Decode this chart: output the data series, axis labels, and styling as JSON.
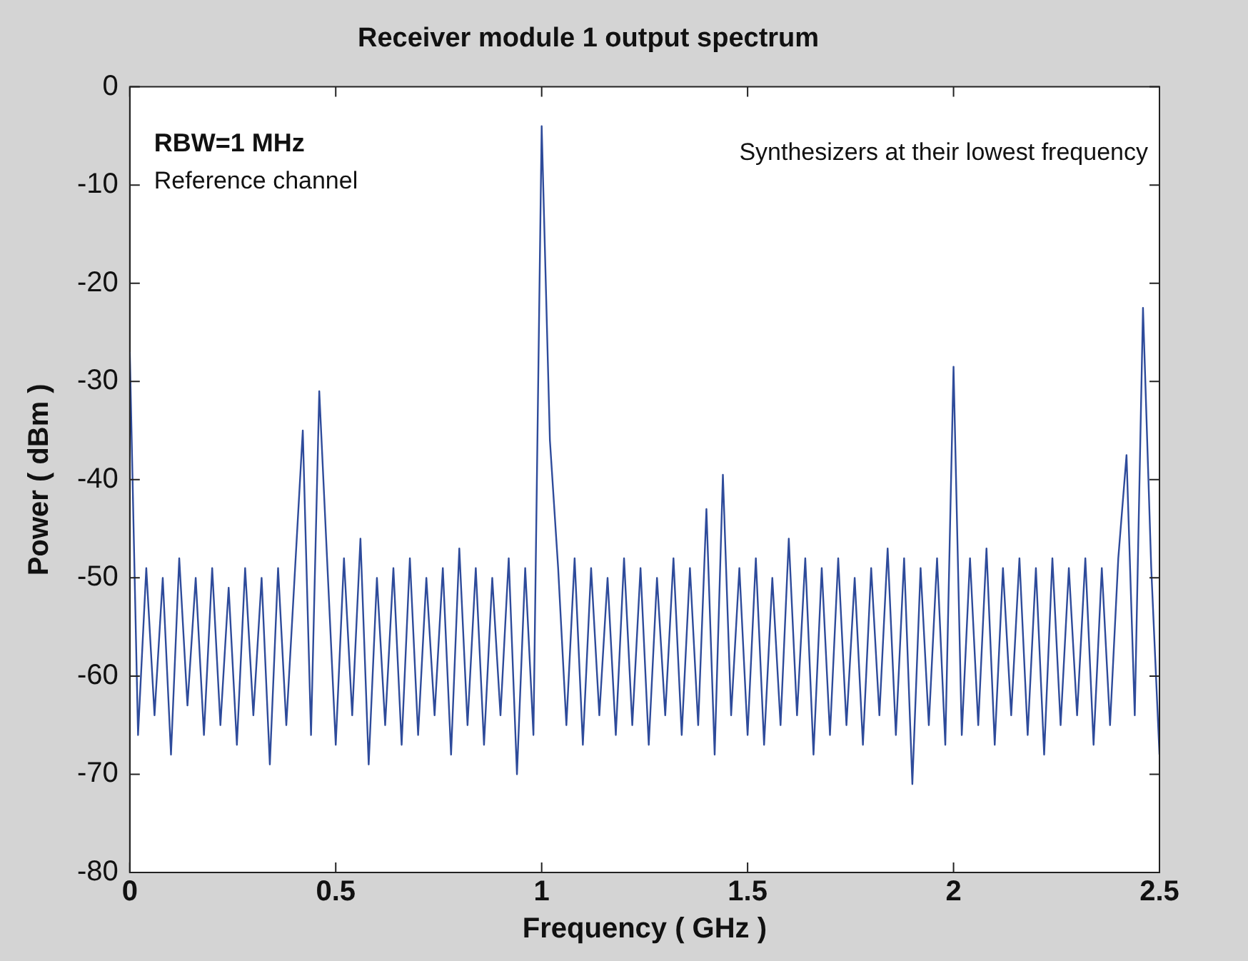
{
  "chart_data": {
    "type": "line",
    "title": "Receiver module 1 output spectrum",
    "xlabel": "Frequency ( GHz )",
    "ylabel": "Power ( dBm )",
    "annotations": [
      "RBW=1 MHz",
      "Reference channel",
      "Synthesizers at their lowest frequency"
    ],
    "x": [
      0,
      0.02,
      0.04,
      0.06,
      0.08,
      0.1,
      0.12,
      0.14,
      0.16,
      0.18,
      0.2,
      0.22,
      0.24,
      0.26,
      0.28,
      0.3,
      0.32,
      0.34,
      0.36,
      0.38,
      0.4,
      0.42,
      0.44,
      0.46,
      0.48,
      0.5,
      0.52,
      0.54,
      0.56,
      0.58,
      0.6,
      0.62,
      0.64,
      0.66,
      0.68,
      0.7,
      0.72,
      0.74,
      0.76,
      0.78,
      0.8,
      0.82,
      0.84,
      0.86,
      0.88,
      0.9,
      0.92,
      0.94,
      0.96,
      0.98,
      1,
      1.02,
      1.04,
      1.06,
      1.08,
      1.1,
      1.12,
      1.14,
      1.16,
      1.18,
      1.2,
      1.22,
      1.24,
      1.26,
      1.28,
      1.3,
      1.32,
      1.34,
      1.36,
      1.38,
      1.4,
      1.42,
      1.44,
      1.46,
      1.48,
      1.5,
      1.52,
      1.54,
      1.56,
      1.58,
      1.6,
      1.62,
      1.64,
      1.66,
      1.68,
      1.7,
      1.72,
      1.74,
      1.76,
      1.78,
      1.8,
      1.82,
      1.84,
      1.86,
      1.88,
      1.9,
      1.92,
      1.94,
      1.96,
      1.98,
      2,
      2.02,
      2.04,
      2.06,
      2.08,
      2.1,
      2.12,
      2.14,
      2.16,
      2.18,
      2.2,
      2.22,
      2.24,
      2.26,
      2.28,
      2.3,
      2.32,
      2.34,
      2.36,
      2.38,
      2.4,
      2.42,
      2.44,
      2.46,
      2.48,
      2.5
    ],
    "series": [
      {
        "color": "#2e4b9b",
        "values": [
          -27,
          -66,
          -49,
          -64,
          -50,
          -68,
          -48,
          -63,
          -50,
          -66,
          -49,
          -65,
          -51,
          -67,
          -49,
          -64,
          -50,
          -69,
          -49,
          -65,
          -50,
          -35,
          -66,
          -31,
          -49,
          -67,
          -48,
          -64,
          -46,
          -69,
          -50,
          -65,
          -49,
          -67,
          -48,
          -66,
          -50,
          -64,
          -49,
          -68,
          -47,
          -65,
          -49,
          -67,
          -50,
          -64,
          -48,
          -70,
          -49,
          -66,
          -4,
          -36,
          -49,
          -65,
          -48,
          -67,
          -49,
          -64,
          -50,
          -66,
          -48,
          -65,
          -49,
          -67,
          -50,
          -64,
          -48,
          -66,
          -49,
          -65,
          -43,
          -68,
          -39.5,
          -64,
          -49,
          -66,
          -48,
          -67,
          -50,
          -65,
          -46,
          -64,
          -48,
          -68,
          -49,
          -66,
          -48,
          -65,
          -50,
          -67,
          -49,
          -64,
          -47,
          -66,
          -48,
          -71,
          -49,
          -65,
          -48,
          -67,
          -28.5,
          -66,
          -48,
          -65,
          -47,
          -67,
          -49,
          -64,
          -48,
          -66,
          -49,
          -68,
          -48,
          -65,
          -49,
          -64,
          -48,
          -67,
          -49,
          -65,
          -48,
          -37.5,
          -64,
          -22.5,
          -49,
          -68
        ]
      }
    ],
    "xlim": [
      0,
      2.5
    ],
    "xticks": [
      0,
      0.5,
      1,
      1.5,
      2,
      2.5
    ],
    "ylim": [
      -80,
      0
    ],
    "yticks": [
      -80,
      -70,
      -60,
      -50,
      -40,
      -30,
      -20,
      -10,
      0
    ],
    "grid": false,
    "legend": false,
    "marker": "none"
  }
}
